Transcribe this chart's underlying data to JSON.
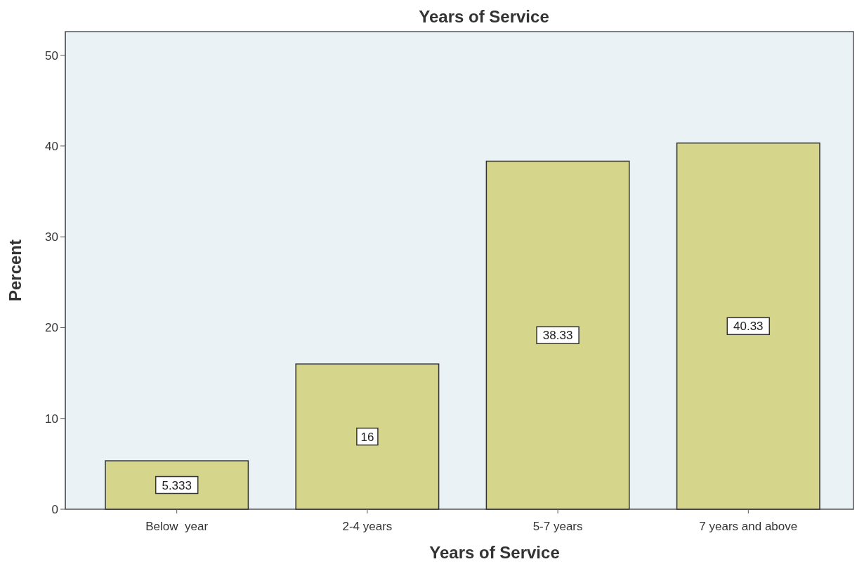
{
  "chart_data": {
    "type": "bar",
    "title": "Years of Service",
    "xlabel": "Years of Service",
    "ylabel": "Percent",
    "categories": [
      "Below  year",
      "2-4 years",
      "5-7 years",
      "7 years and above"
    ],
    "values": [
      5.333,
      16,
      38.33,
      40.33
    ],
    "color": "#d6d58c",
    "ylim": [
      0,
      52.6
    ],
    "yticks": [
      0,
      10,
      20,
      30,
      40,
      50
    ],
    "data_labels": true,
    "grid": false
  }
}
